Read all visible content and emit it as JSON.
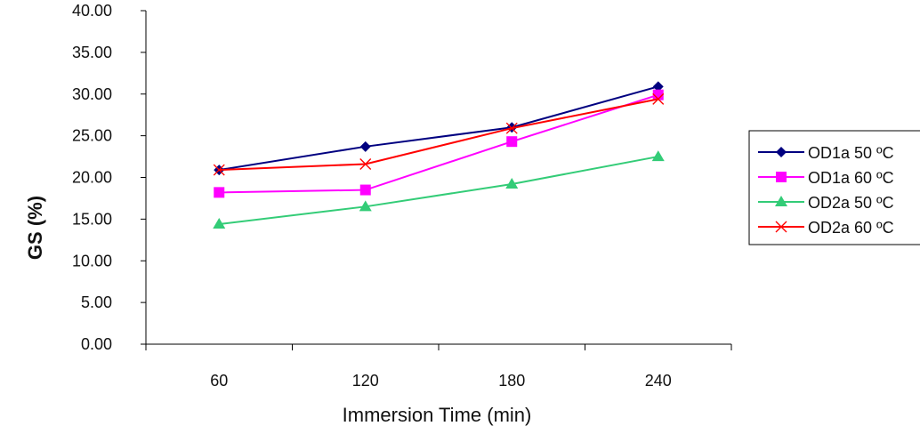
{
  "chart_data": {
    "type": "line",
    "title": "",
    "xlabel": "Immersion Time (min)",
    "ylabel": "GS (%)",
    "categories": [
      "60",
      "120",
      "180",
      "240"
    ],
    "yticks": [
      "0.00",
      "5.00",
      "10.00",
      "15.00",
      "20.00",
      "25.00",
      "30.00",
      "35.00",
      "40.00"
    ],
    "ylim": [
      0,
      40
    ],
    "grid": false,
    "legend_position": "right",
    "series": [
      {
        "name": "OD1a 50 ºC",
        "values": [
          20.9,
          23.7,
          26.0,
          30.9
        ],
        "color": "#000080",
        "marker": "diamond"
      },
      {
        "name": "OD1a 60 ºC",
        "values": [
          18.2,
          18.5,
          24.3,
          29.9
        ],
        "color": "#ff00ff",
        "marker": "square"
      },
      {
        "name": "OD2a 50 ºC",
        "values": [
          14.4,
          16.5,
          19.2,
          22.5
        ],
        "color": "#33cc77",
        "marker": "triangle"
      },
      {
        "name": "OD2a 60 ºC",
        "values": [
          20.9,
          21.6,
          25.9,
          29.4
        ],
        "color": "#ff0000",
        "marker": "x"
      }
    ]
  }
}
